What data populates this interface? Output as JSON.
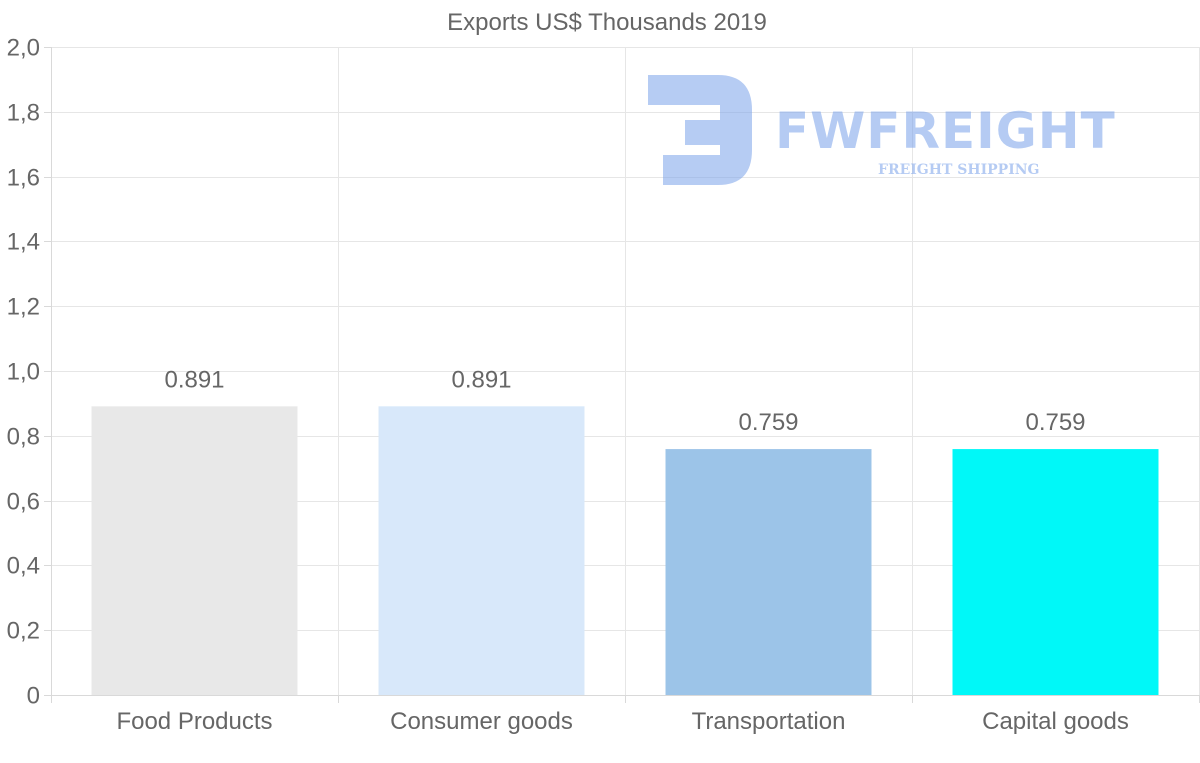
{
  "chart_data": {
    "type": "bar",
    "title": "Exports US$ Thousands 2019",
    "categories": [
      "Food Products",
      "Consumer goods",
      "Transportation",
      "Capital goods"
    ],
    "values": [
      0.891,
      0.891,
      0.759,
      0.759
    ],
    "value_labels": [
      "0.891",
      "0.891",
      "0.759",
      "0.759"
    ],
    "bar_colors": [
      "#e8e8e8",
      "#d8e8fa",
      "#9cc4e8",
      "#00f8f8"
    ],
    "xlabel": "",
    "ylabel": "",
    "ylim": [
      0,
      2.0
    ],
    "y_ticks": [
      0,
      0.2,
      0.4,
      0.6,
      0.8,
      1.0,
      1.2,
      1.4,
      1.6,
      1.8,
      2.0
    ],
    "y_tick_labels": [
      "0",
      "0,2",
      "0,4",
      "0,6",
      "0,8",
      "1,0",
      "1,2",
      "1,4",
      "1,6",
      "1,8",
      "2,0"
    ],
    "grid": true,
    "legend": "none"
  },
  "watermark": {
    "brand": "FWFREIGHT",
    "tagline": "FREIGHT SHIPPING",
    "color": "#7aa2ea"
  }
}
